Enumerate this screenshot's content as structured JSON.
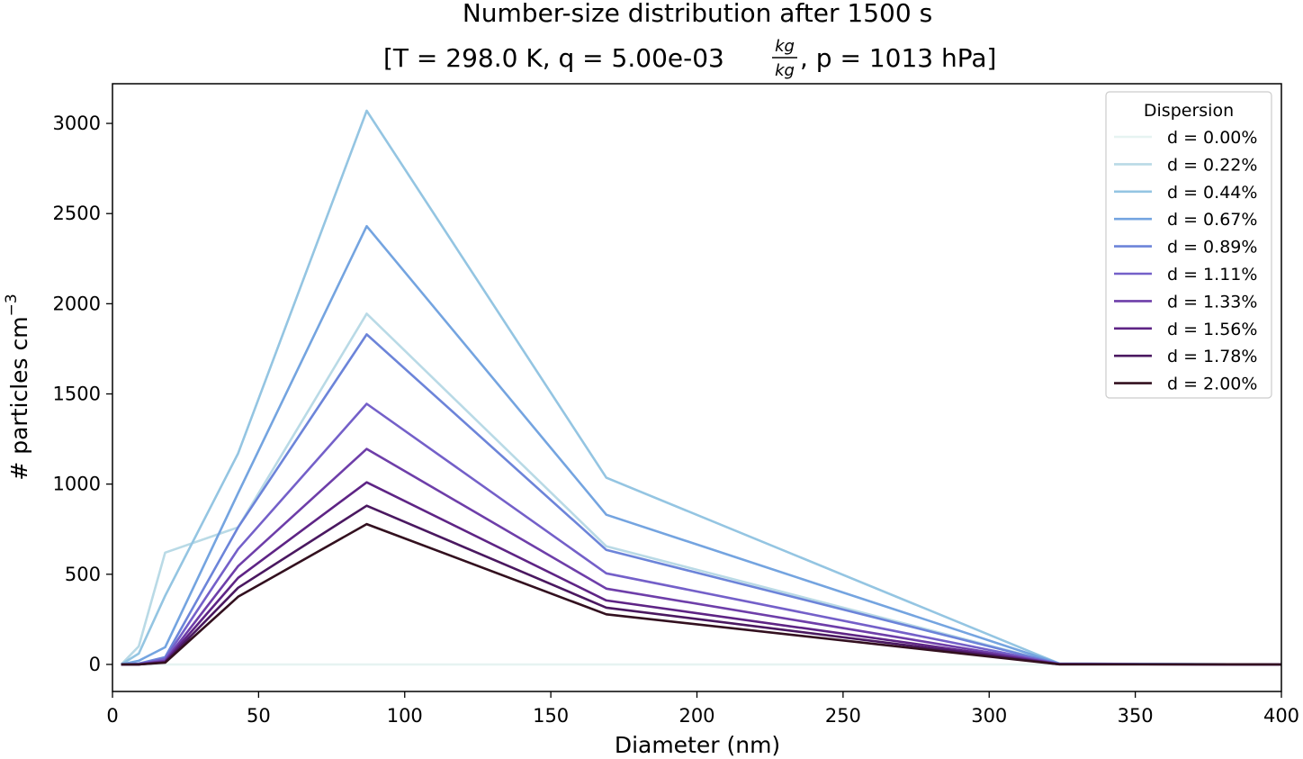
{
  "chart_data": {
    "type": "line",
    "title_line1": "Number-size distribution after 1500 s",
    "title_line2_prefix": "[T = 298.0 K, q = 5.00e-03 ",
    "title_unit_num": "kg",
    "title_unit_den": "kg",
    "title_line2_suffix": ", p = 1013 hPa]",
    "xlabel": "Diameter (nm)",
    "ylabel_base": "# particles cm",
    "ylabel_exp": "−3",
    "xlim": [
      0,
      400
    ],
    "ylim": [
      -150,
      3220
    ],
    "xticks": [
      0,
      50,
      100,
      150,
      200,
      250,
      300,
      350,
      400
    ],
    "yticks": [
      0,
      500,
      1000,
      1500,
      2000,
      2500,
      3000
    ],
    "grid": false,
    "legend": {
      "title": "Dispersion",
      "placement": "top-right"
    },
    "x": [
      3,
      9,
      18,
      43,
      87,
      169,
      324,
      400
    ],
    "series": [
      {
        "name": "d = 0.00%",
        "color": "#e6f3f1",
        "values": [
          0,
          0,
          0,
          0,
          0,
          0,
          0,
          0
        ]
      },
      {
        "name": "d = 0.22%",
        "color": "#b9dae6",
        "values": [
          0,
          100,
          620,
          760,
          1945,
          655,
          5,
          0
        ]
      },
      {
        "name": "d = 0.44%",
        "color": "#94c5e2",
        "values": [
          0,
          60,
          380,
          1170,
          3070,
          1035,
          5,
          0
        ]
      },
      {
        "name": "d = 0.67%",
        "color": "#74a4e0",
        "values": [
          0,
          20,
          95,
          950,
          2430,
          830,
          5,
          0
        ]
      },
      {
        "name": "d = 0.89%",
        "color": "#6c84d9",
        "values": [
          0,
          5,
          40,
          760,
          1830,
          635,
          3,
          0
        ]
      },
      {
        "name": "d = 1.11%",
        "color": "#7460c9",
        "values": [
          0,
          2,
          30,
          640,
          1445,
          505,
          3,
          0
        ]
      },
      {
        "name": "d = 1.33%",
        "color": "#6e3ea9",
        "values": [
          0,
          1,
          20,
          545,
          1195,
          420,
          2,
          0
        ]
      },
      {
        "name": "d = 1.56%",
        "color": "#5e2485",
        "values": [
          0,
          0,
          15,
          480,
          1010,
          355,
          2,
          0
        ]
      },
      {
        "name": "d = 1.78%",
        "color": "#4a1860",
        "values": [
          0,
          0,
          12,
          425,
          880,
          315,
          1,
          0
        ]
      },
      {
        "name": "d = 2.00%",
        "color": "#33101f",
        "values": [
          0,
          0,
          10,
          375,
          778,
          278,
          1,
          0
        ]
      }
    ]
  }
}
